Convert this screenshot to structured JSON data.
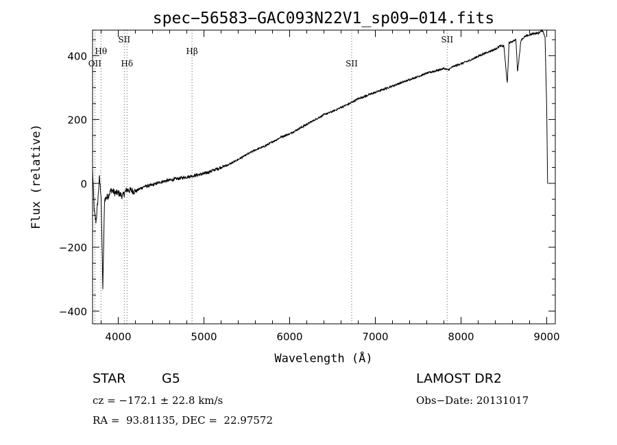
{
  "chart_data": {
    "type": "line",
    "title": "spec−56583−GAC093N22V1_sp09−014.fits",
    "xlabel": "Wavelength (Å)",
    "ylabel": "Flux (relative)",
    "xlim": [
      3700,
      9100
    ],
    "ylim": [
      -440,
      480
    ],
    "xticks": [
      {
        "value": 4000,
        "label": "4000"
      },
      {
        "value": 5000,
        "label": "5000"
      },
      {
        "value": 6000,
        "label": "6000"
      },
      {
        "value": 7000,
        "label": "7000"
      },
      {
        "value": 8000,
        "label": "8000"
      },
      {
        "value": 9000,
        "label": "9000"
      }
    ],
    "yticks": [
      {
        "value": -400,
        "label": "−400"
      },
      {
        "value": -200,
        "label": "−200"
      },
      {
        "value": 0,
        "label": "0"
      },
      {
        "value": 200,
        "label": "200"
      },
      {
        "value": 400,
        "label": "400"
      }
    ],
    "lines": [
      {
        "wavelength": 3727,
        "label": "OII",
        "row": 3
      },
      {
        "wavelength": 3798,
        "label": "Hθ",
        "row": 2
      },
      {
        "wavelength": 4070,
        "label": "SII",
        "row": 1
      },
      {
        "wavelength": 4102,
        "label": "Hδ",
        "row": 3
      },
      {
        "wavelength": 4861,
        "label": "Hβ",
        "row": 2
      },
      {
        "wavelength": 6724,
        "label": "SII",
        "row": 3
      },
      {
        "wavelength": 7838,
        "label": "SII",
        "row": 1
      }
    ],
    "spectrum": {
      "x": [
        3700,
        3720,
        3740,
        3760,
        3780,
        3800,
        3820,
        3840,
        3880,
        3920,
        3960,
        4000,
        4050,
        4100,
        4200,
        4300,
        4400,
        4500,
        4600,
        4700,
        4800,
        4900,
        5000,
        5100,
        5200,
        5300,
        5400,
        5500,
        5600,
        5700,
        5800,
        5900,
        6000,
        6100,
        6200,
        6300,
        6400,
        6500,
        6600,
        6700,
        6800,
        6900,
        7000,
        7100,
        7200,
        7300,
        7400,
        7500,
        7600,
        7700,
        7800,
        7850,
        7900,
        8000,
        8100,
        8200,
        8300,
        8400,
        8450,
        8500,
        8540,
        8560,
        8600,
        8640,
        8660,
        8700,
        8750,
        8800,
        8850,
        8900,
        8950,
        8980,
        9000,
        9010
      ],
      "y": [
        40,
        -90,
        -120,
        -60,
        20,
        -40,
        -330,
        -50,
        -40,
        -20,
        -30,
        -30,
        -40,
        -20,
        -25,
        -10,
        -5,
        5,
        10,
        15,
        20,
        25,
        30,
        40,
        50,
        60,
        75,
        90,
        105,
        115,
        130,
        145,
        155,
        170,
        185,
        200,
        215,
        225,
        238,
        250,
        265,
        275,
        285,
        295,
        305,
        315,
        325,
        335,
        345,
        352,
        360,
        355,
        365,
        375,
        385,
        398,
        410,
        420,
        430,
        430,
        310,
        440,
        445,
        450,
        350,
        450,
        460,
        465,
        470,
        470,
        480,
        460,
        230,
        0
      ]
    }
  },
  "info": {
    "object_class": "STAR",
    "subclass": "G5",
    "survey": "LAMOST DR2",
    "cz": "cz = −172.1 ± 22.8 km/s",
    "obs_date": "Obs−Date: 20131017",
    "coords": "RA =  93.81135, DEC =  22.97572"
  }
}
